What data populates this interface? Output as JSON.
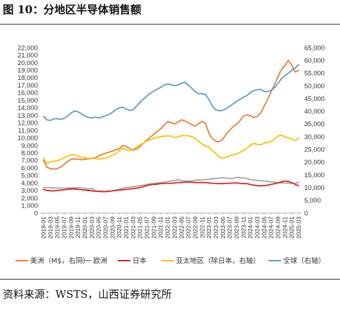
{
  "header": {
    "title": "图 10：分地区半导体销售额"
  },
  "footer": {
    "source": "资料来源：WSTS，山西证券研究所"
  },
  "chart_data": {
    "type": "line",
    "x": [
      "2019-01",
      "2019-02",
      "2019-03",
      "2019-04",
      "2019-05",
      "2019-06",
      "2019-07",
      "2019-08",
      "2019-09",
      "2019-10",
      "2019-11",
      "2019-12",
      "2020-01",
      "2020-02",
      "2020-03",
      "2020-04",
      "2020-05",
      "2020-06",
      "2020-07",
      "2020-08",
      "2020-09",
      "2020-10",
      "2020-11",
      "2020-12",
      "2021-01",
      "2021-02",
      "2021-03",
      "2021-04",
      "2021-05",
      "2021-06",
      "2021-07",
      "2021-08",
      "2021-09",
      "2021-10",
      "2021-11",
      "2021-12",
      "2022-01",
      "2022-02",
      "2022-03",
      "2022-04",
      "2022-05",
      "2022-06",
      "2022-07",
      "2022-08",
      "2022-09",
      "2022-10",
      "2022-11",
      "2022-12",
      "2023-01",
      "2023-02",
      "2023-03",
      "2023-04",
      "2023-05",
      "2023-06",
      "2023-07",
      "2023-08",
      "2023-09",
      "2023-10",
      "2023-11",
      "2023-12",
      "2024-01",
      "2024-02",
      "2024-03",
      "2024-04",
      "2024-05",
      "2024-06",
      "2024-07",
      "2024-08",
      "2024-09",
      "2024-10",
      "2024-11",
      "2024-12",
      "2025-01",
      "2025-02",
      "2025-03"
    ],
    "x_tick_labels": [
      "2019-01",
      "2019-03",
      "2019-05",
      "2019-07",
      "2019-09",
      "2019-11",
      "2020-01",
      "2020-03",
      "2020-05",
      "2020-07",
      "2020-09",
      "2020-11",
      "2021-01",
      "2021-03",
      "2021-05",
      "2021-07",
      "2021-09",
      "2021-11",
      "2022-01",
      "2022-03",
      "2022-05",
      "2022-07",
      "2022-09",
      "2022-11",
      "2023-01",
      "2023-03",
      "2023-05",
      "2023-07",
      "2023-09",
      "2023-11",
      "2024-01",
      "2024-03",
      "2024-05",
      "2024-07",
      "2024-09",
      "2024-11",
      "2025-01",
      "2025-03"
    ],
    "y_left": {
      "min": 0,
      "max": 22000,
      "step": 1000,
      "tick_labels": [
        "0",
        "1,000",
        "2,000",
        "3,000",
        "4,000",
        "5,000",
        "6,000",
        "7,000",
        "8,000",
        "9,000",
        "10,000",
        "11,000",
        "12,000",
        "13,000",
        "14,000",
        "15,000",
        "16,000",
        "17,000",
        "18,000",
        "19,000",
        "20,000",
        "21,000",
        "22,000"
      ]
    },
    "y_right": {
      "min": 0,
      "max": 65000,
      "step": 5000,
      "tick_labels": [
        "0",
        "5,000",
        "10,000",
        "15,000",
        "20,000",
        "25,000",
        "30,000",
        "35,000",
        "40,000",
        "45,000",
        "50,000",
        "55,000",
        "60,000",
        "65,000"
      ]
    },
    "grid": false,
    "legend_position": "bottom",
    "series": [
      {
        "name": "美洲（M$，右同）",
        "axis": "left",
        "color": "#ED7D31",
        "values": [
          7000,
          6100,
          5900,
          5850,
          5900,
          6100,
          6500,
          6850,
          7150,
          7200,
          7150,
          7100,
          7150,
          7200,
          7250,
          7350,
          7600,
          7800,
          7950,
          8100,
          8250,
          8400,
          8550,
          9000,
          8850,
          8600,
          8350,
          8500,
          8850,
          9300,
          9700,
          10100,
          10500,
          10850,
          11200,
          11700,
          12150,
          12050,
          11850,
          12100,
          12400,
          12250,
          12000,
          11750,
          11550,
          11900,
          12200,
          11900,
          10600,
          9900,
          9550,
          9500,
          9800,
          10500,
          11000,
          11500,
          11800,
          12300,
          12900,
          13050,
          12950,
          12700,
          12850,
          13300,
          14200,
          15100,
          16100,
          17100,
          18100,
          19100,
          19600,
          20300,
          19700,
          18750,
          19000
        ]
      },
      {
        "name": "欧洲",
        "axis": "left",
        "color": "#A5A5A5",
        "values": [
          3400,
          3380,
          3370,
          3350,
          3330,
          3320,
          3300,
          3320,
          3340,
          3360,
          3350,
          3330,
          3300,
          3150,
          3300,
          2950,
          2850,
          2850,
          2850,
          2900,
          2950,
          3050,
          3150,
          3300,
          3400,
          3450,
          3500,
          3550,
          3650,
          3700,
          3800,
          3900,
          3950,
          4000,
          4050,
          4100,
          4200,
          4250,
          4300,
          4450,
          4300,
          4250,
          4250,
          4300,
          4350,
          4400,
          4400,
          4450,
          4500,
          4550,
          4600,
          4650,
          4700,
          4650,
          4600,
          4600,
          4750,
          4700,
          4650,
          4600,
          4450,
          4400,
          4350,
          4300,
          4250,
          4200,
          4150,
          4100,
          4050,
          4000,
          4000,
          3950,
          3950,
          3900,
          4100
        ]
      },
      {
        "name": "日本",
        "axis": "left",
        "color": "#E02020",
        "values": [
          3150,
          3000,
          2950,
          2950,
          3000,
          3050,
          3100,
          3150,
          3200,
          3200,
          3150,
          3100,
          3050,
          3000,
          2950,
          2900,
          2900,
          2850,
          2850,
          2900,
          2950,
          3000,
          3050,
          3100,
          3150,
          3200,
          3250,
          3300,
          3400,
          3500,
          3650,
          3750,
          3800,
          3850,
          3900,
          3950,
          3950,
          3950,
          4000,
          4050,
          4050,
          4100,
          4100,
          4100,
          4050,
          4050,
          4050,
          4050,
          4000,
          3950,
          3950,
          3900,
          3900,
          3950,
          3950,
          4000,
          4000,
          3950,
          3900,
          3900,
          3800,
          3700,
          3650,
          3600,
          3650,
          3700,
          3800,
          3900,
          4000,
          4150,
          4250,
          4200,
          4050,
          3800,
          3650
        ]
      },
      {
        "name": "亚太地区（除日本，右轴）",
        "axis": "right",
        "color": "#FFC000",
        "values": [
          21600,
          19500,
          20100,
          20300,
          20500,
          21000,
          21700,
          22400,
          22900,
          22900,
          22500,
          21900,
          21800,
          21400,
          21600,
          21400,
          21200,
          21400,
          21600,
          22000,
          22700,
          23300,
          24500,
          25500,
          25000,
          24500,
          25000,
          25900,
          26700,
          27500,
          28300,
          28900,
          29300,
          29800,
          30000,
          30200,
          30300,
          30300,
          29600,
          29900,
          30400,
          30400,
          30400,
          30000,
          29300,
          28200,
          27000,
          26500,
          25800,
          24500,
          23400,
          22000,
          21500,
          22000,
          22500,
          22900,
          23300,
          23800,
          24600,
          25400,
          26700,
          27400,
          27000,
          26800,
          27500,
          27700,
          28200,
          28900,
          30300,
          30600,
          29900,
          29600,
          29000,
          28400,
          29500
        ]
      },
      {
        "name": "全球（右轴）",
        "axis": "right",
        "color": "#5B9BD5",
        "values": [
          38000,
          36600,
          36400,
          37000,
          37100,
          36800,
          37200,
          38100,
          39300,
          40100,
          39800,
          39000,
          38100,
          37600,
          37400,
          37700,
          37400,
          37700,
          38300,
          38700,
          39600,
          40600,
          41300,
          41600,
          40900,
          40300,
          40600,
          42000,
          43500,
          44800,
          46000,
          47100,
          47900,
          48700,
          49400,
          50300,
          50700,
          50500,
          50000,
          50400,
          51000,
          51400,
          50300,
          49000,
          47800,
          46900,
          46900,
          46600,
          44600,
          42000,
          40500,
          40200,
          40400,
          41000,
          42000,
          42900,
          43900,
          44700,
          45600,
          46100,
          47400,
          48100,
          48500,
          48600,
          47800,
          47700,
          48200,
          49300,
          50900,
          52800,
          53900,
          55000,
          56100,
          57000,
          58300
        ]
      }
    ]
  }
}
